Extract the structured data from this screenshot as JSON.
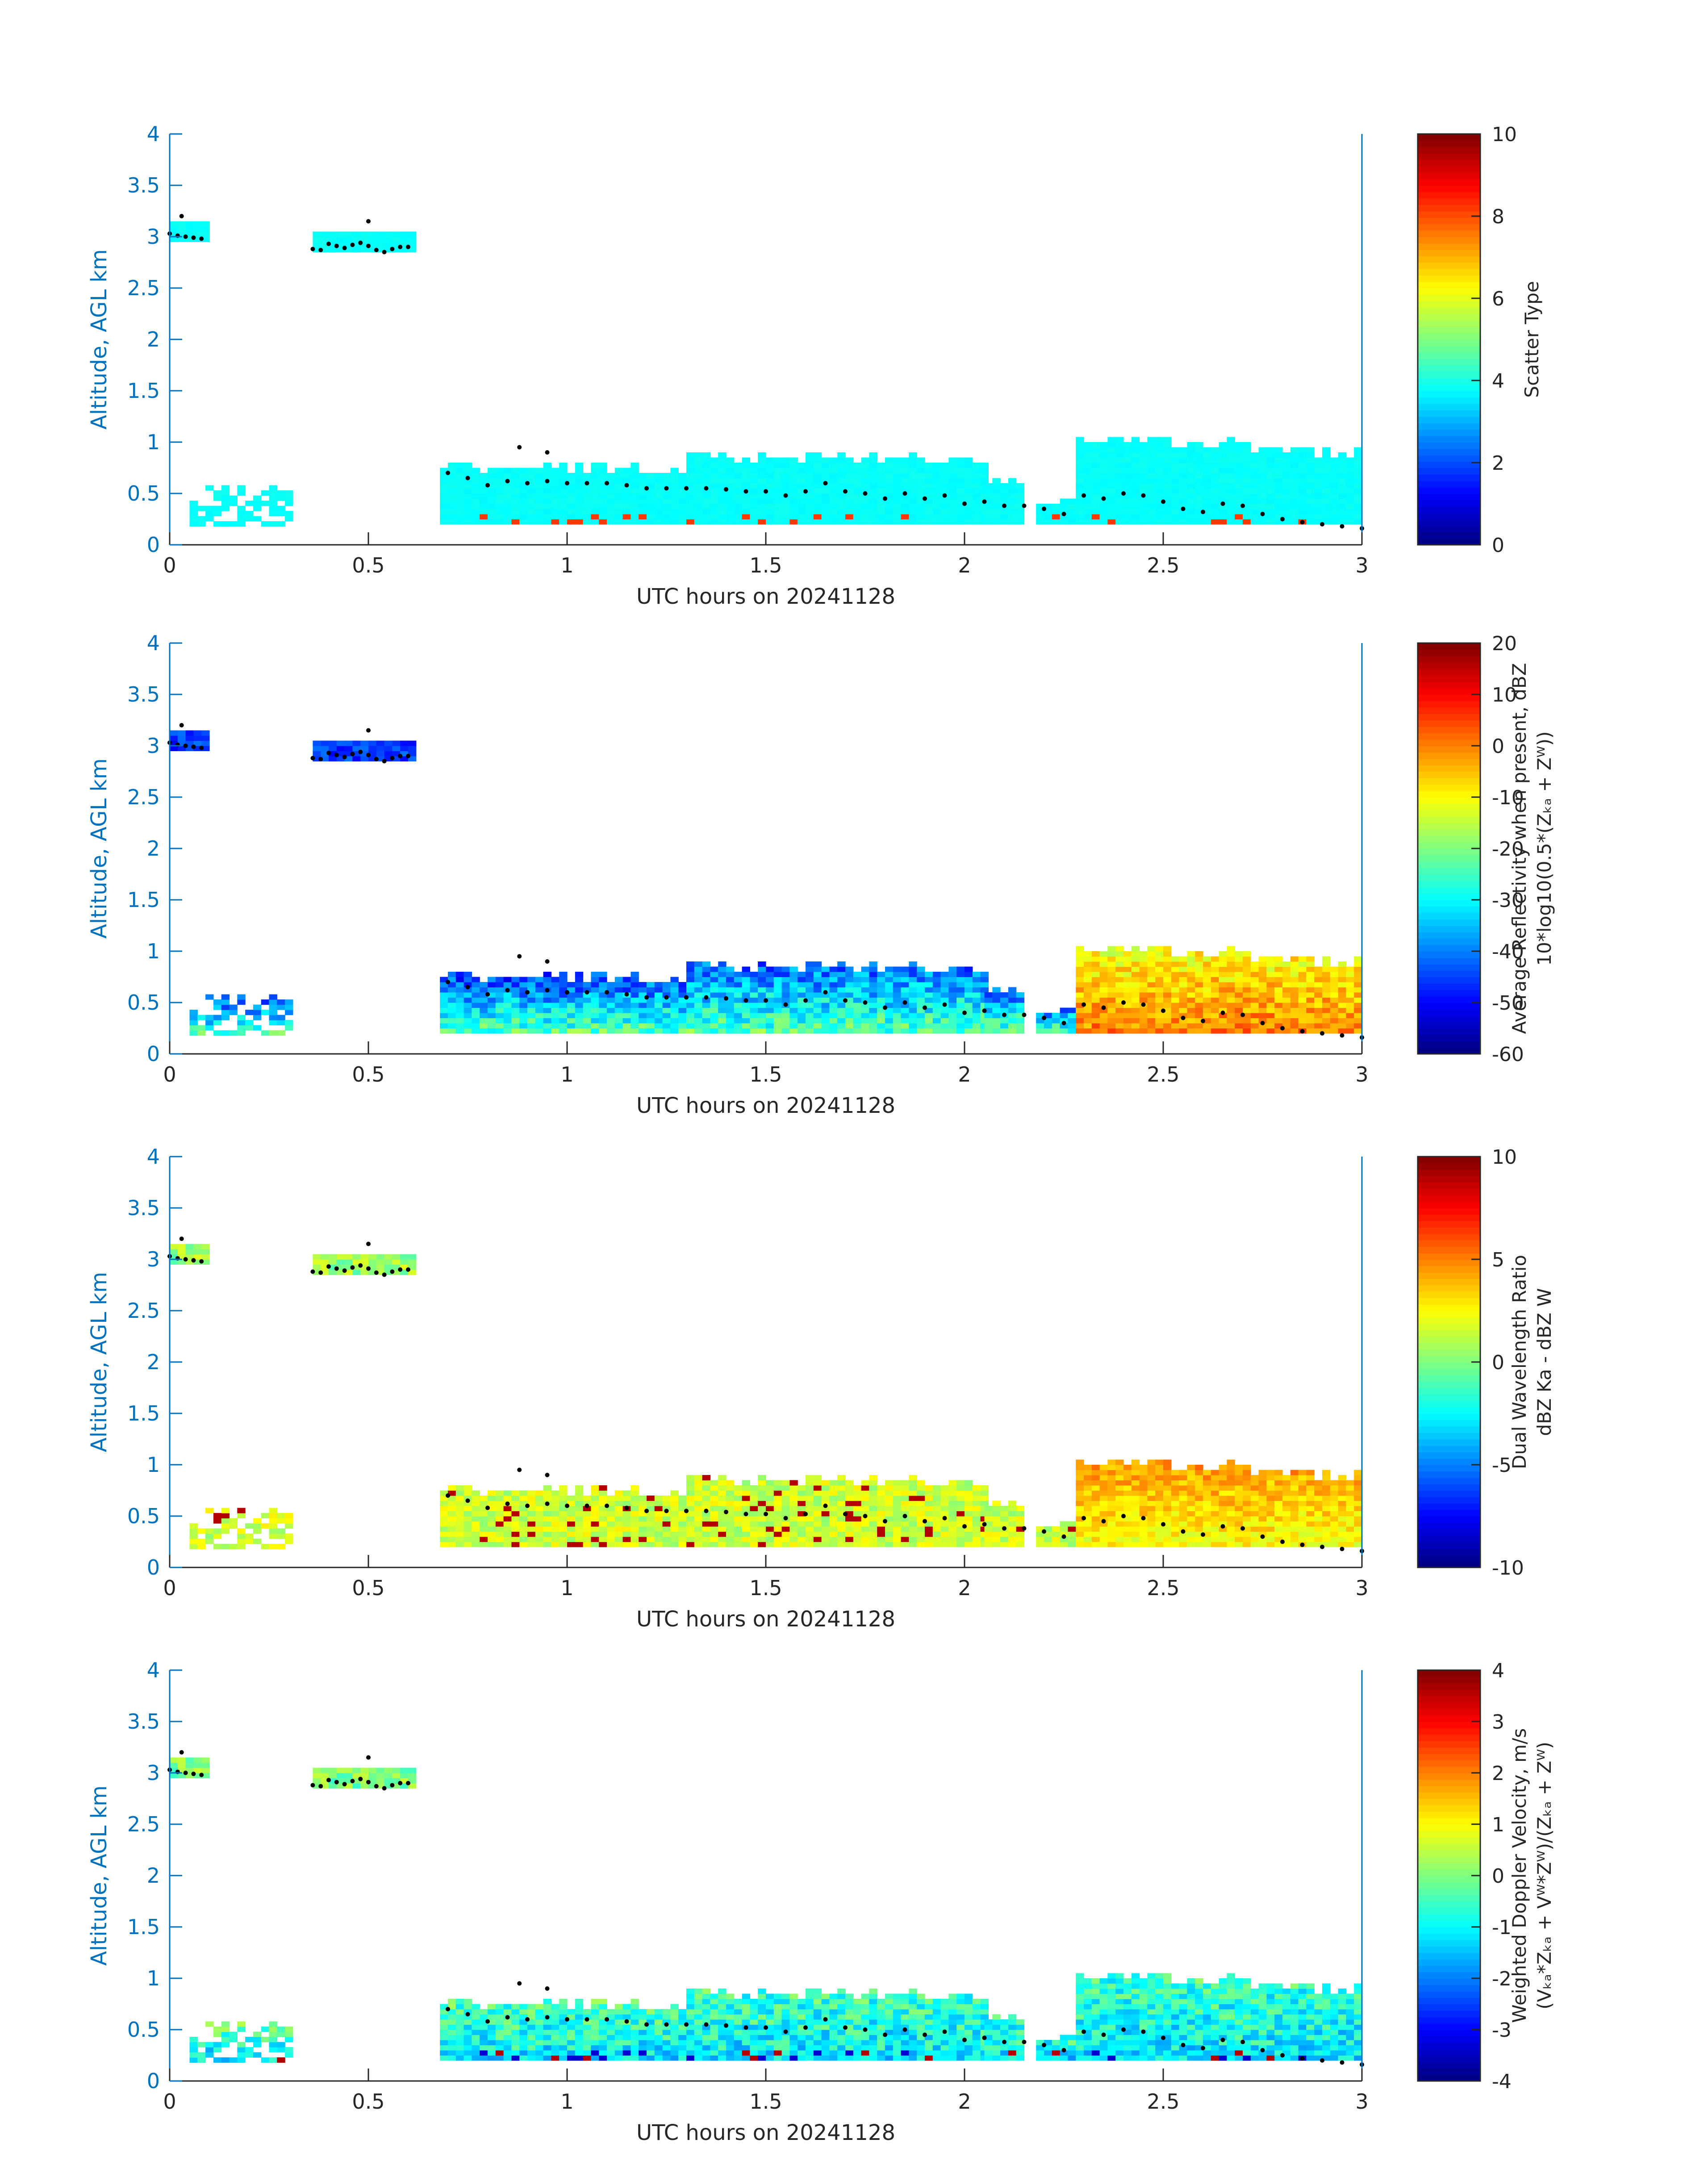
{
  "figure": {
    "date": "20241128",
    "axis_color": "#0072bd",
    "text_color": "#262626",
    "cloud_top_marker_color": "#000000",
    "colormap": "jet"
  },
  "chart_data": [
    {
      "type": "heatmap",
      "xlabel": "UTC hours on 20241128",
      "ylabel": "Altitude, AGL km",
      "xlim": [
        0,
        3
      ],
      "ylim": [
        0,
        4
      ],
      "xticks": [
        0,
        0.5,
        1,
        1.5,
        2,
        2.5,
        3
      ],
      "xtick_labels": [
        "0",
        "0.5",
        "1",
        "1.5",
        "2",
        "2.5",
        "3"
      ],
      "yticks": [
        0,
        0.5,
        1,
        1.5,
        2,
        2.5,
        3,
        3.5,
        4
      ],
      "ytick_labels": [
        "0",
        "0.5",
        "1",
        "1.5",
        "2",
        "2.5",
        "3",
        "3.5",
        "4"
      ],
      "colorbar": {
        "label_lines": [
          "Scatter Type"
        ],
        "clim": [
          0,
          10
        ],
        "ticks": [
          0,
          2,
          4,
          6,
          8,
          10
        ],
        "tick_labels": [
          "0",
          "2",
          "4",
          "6",
          "8",
          "10"
        ]
      },
      "field": "scatter",
      "dominant_value": 3.8,
      "secondary_value": 8.2
    },
    {
      "type": "heatmap",
      "xlabel": "UTC hours on 20241128",
      "ylabel": "Altitude, AGL km",
      "xlim": [
        0,
        3
      ],
      "ylim": [
        0,
        4
      ],
      "xticks": [
        0,
        0.5,
        1,
        1.5,
        2,
        2.5,
        3
      ],
      "xtick_labels": [
        "0",
        "0.5",
        "1",
        "1.5",
        "2",
        "2.5",
        "3"
      ],
      "yticks": [
        0,
        0.5,
        1,
        1.5,
        2,
        2.5,
        3,
        3.5,
        4
      ],
      "ytick_labels": [
        "0",
        "0.5",
        "1",
        "1.5",
        "2",
        "2.5",
        "3",
        "3.5",
        "4"
      ],
      "colorbar": {
        "label_lines": [
          "Average Reflectivity when present, dBZ",
          "10*log10(0.5*(Zₖₐ + Zᵂ))"
        ],
        "clim": [
          -60,
          20
        ],
        "ticks": [
          -60,
          -50,
          -40,
          -30,
          -20,
          -10,
          0,
          10,
          20
        ],
        "tick_labels": [
          "-60",
          "-50",
          "-40",
          "-30",
          "-20",
          "-10",
          "0",
          "10",
          "20"
        ]
      },
      "field": "reflectivity"
    },
    {
      "type": "heatmap",
      "xlabel": "UTC hours on 20241128",
      "ylabel": "Altitude, AGL km",
      "xlim": [
        0,
        3
      ],
      "ylim": [
        0,
        4
      ],
      "xticks": [
        0,
        0.5,
        1,
        1.5,
        2,
        2.5,
        3
      ],
      "xtick_labels": [
        "0",
        "0.5",
        "1",
        "1.5",
        "2",
        "2.5",
        "3"
      ],
      "yticks": [
        0,
        0.5,
        1,
        1.5,
        2,
        2.5,
        3,
        3.5,
        4
      ],
      "ytick_labels": [
        "0",
        "0.5",
        "1",
        "1.5",
        "2",
        "2.5",
        "3",
        "3.5",
        "4"
      ],
      "colorbar": {
        "label_lines": [
          "Dual Wavelength Ratio",
          "dBZ Ka - dBZ W"
        ],
        "clim": [
          -10,
          10
        ],
        "ticks": [
          -10,
          -5,
          0,
          5,
          10
        ],
        "tick_labels": [
          "-10",
          "-5",
          "0",
          "5",
          "10"
        ]
      },
      "field": "dwr"
    },
    {
      "type": "heatmap",
      "xlabel": "UTC hours on 20241128",
      "ylabel": "Altitude, AGL km",
      "xlim": [
        0,
        3
      ],
      "ylim": [
        0,
        4
      ],
      "xticks": [
        0,
        0.5,
        1,
        1.5,
        2,
        2.5,
        3
      ],
      "xtick_labels": [
        "0",
        "0.5",
        "1",
        "1.5",
        "2",
        "2.5",
        "3"
      ],
      "yticks": [
        0,
        0.5,
        1,
        1.5,
        2,
        2.5,
        3,
        3.5,
        4
      ],
      "ytick_labels": [
        "0",
        "0.5",
        "1",
        "1.5",
        "2",
        "2.5",
        "3",
        "3.5",
        "4"
      ],
      "colorbar": {
        "label_lines": [
          "Weighted Doppler Velocity, m/s",
          "(Vₖₐ*Zₖₐ + Vᵂ*Zᵂ)/(Zₖₐ + Zᵂ)"
        ],
        "clim": [
          -4,
          4
        ],
        "ticks": [
          -4,
          -3,
          -2,
          -1,
          0,
          1,
          2,
          3,
          4
        ],
        "tick_labels": [
          "-4",
          "-3",
          "-2",
          "-1",
          "0",
          "1",
          "2",
          "3",
          "4"
        ]
      },
      "field": "velocity"
    }
  ],
  "cloud_top_markers": {
    "segments": [
      {
        "t": [
          0.0,
          0.02,
          0.04,
          0.06,
          0.08
        ],
        "h": [
          3.03,
          3.01,
          3.0,
          2.99,
          2.98
        ]
      },
      {
        "t": [
          0.36,
          0.38,
          0.4,
          0.42,
          0.44,
          0.46,
          0.48,
          0.5,
          0.52,
          0.54,
          0.56,
          0.58,
          0.6
        ],
        "h": [
          2.88,
          2.87,
          2.93,
          2.91,
          2.89,
          2.92,
          2.94,
          2.91,
          2.87,
          2.85,
          2.88,
          2.9,
          2.9
        ]
      },
      {
        "t": [
          0.7,
          0.75,
          0.8,
          0.85,
          0.9,
          0.95,
          1.0,
          1.05,
          1.1,
          1.15,
          1.2,
          1.25,
          1.3,
          1.35,
          1.4,
          1.45,
          1.5,
          1.55,
          1.6,
          1.65,
          1.7,
          1.75,
          1.8,
          1.85,
          1.9,
          1.95,
          2.0,
          2.05,
          2.1,
          2.15
        ],
        "h": [
          0.7,
          0.65,
          0.58,
          0.62,
          0.6,
          0.62,
          0.6,
          0.6,
          0.6,
          0.58,
          0.55,
          0.55,
          0.55,
          0.55,
          0.54,
          0.52,
          0.52,
          0.48,
          0.52,
          0.6,
          0.52,
          0.5,
          0.45,
          0.5,
          0.45,
          0.48,
          0.4,
          0.42,
          0.38,
          0.38
        ]
      },
      {
        "t": [
          2.2,
          2.25,
          2.3,
          2.35,
          2.4,
          2.45,
          2.5,
          2.55,
          2.6,
          2.65,
          2.7,
          2.75,
          2.8,
          2.85,
          2.9,
          2.95,
          3.0
        ],
        "h": [
          0.35,
          0.3,
          0.48,
          0.45,
          0.5,
          0.48,
          0.42,
          0.35,
          0.32,
          0.4,
          0.38,
          0.3,
          0.25,
          0.22,
          0.2,
          0.18,
          0.16
        ]
      },
      {
        "t": [
          0.03,
          0.5,
          0.88,
          0.95
        ],
        "h": [
          3.2,
          3.15,
          0.95,
          0.9
        ]
      }
    ]
  },
  "echo_regions": [
    {
      "t0": 0.0,
      "t1": 0.09,
      "h0": 2.95,
      "h1": 3.15,
      "type": "cirrus",
      "mix": "mix"
    },
    {
      "t0": 0.36,
      "t1": 0.62,
      "h0": 2.85,
      "h1": 3.05,
      "type": "cirrus",
      "mix": "mix"
    },
    {
      "t0": 0.05,
      "t1": 0.3,
      "h0": 0.18,
      "h1": 0.55,
      "type": "low",
      "mix": "mix"
    },
    {
      "t0": 0.68,
      "t1": 1.55,
      "h0": 0.2,
      "h1": 0.8,
      "type": "low",
      "mix": "mix"
    },
    {
      "t0": 1.3,
      "t1": 2.05,
      "h0": 0.2,
      "h1": 1.05,
      "type": "low",
      "mix": "mix"
    },
    {
      "t0": 2.05,
      "t1": 2.15,
      "h0": 0.2,
      "h1": 0.75,
      "type": "low",
      "mix": "mix"
    },
    {
      "t0": 2.18,
      "t1": 2.28,
      "h0": 0.2,
      "h1": 0.5,
      "type": "low",
      "mix": "mix"
    },
    {
      "t0": 2.28,
      "t1": 3.0,
      "h0": 0.2,
      "h1": 1.35,
      "type": "deep",
      "mix": "mix"
    }
  ]
}
